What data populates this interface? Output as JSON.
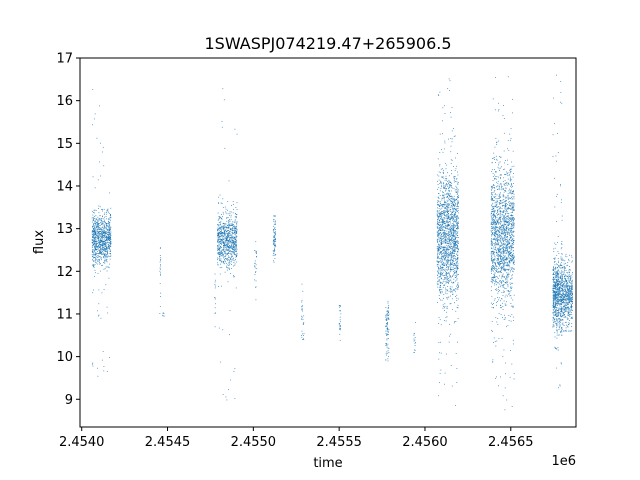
{
  "chart_data": {
    "type": "scatter",
    "title": "1SWASPJ074219.47+265906.5",
    "xlabel": "time",
    "ylabel": "flux",
    "x_offset_label": "1e6",
    "xlim": [
      2453990,
      2456880
    ],
    "ylim": [
      8.35,
      17.0
    ],
    "xticks": [
      2454000,
      2454500,
      2455000,
      2455500,
      2456000,
      2456500
    ],
    "xtick_labels": [
      "2.4540",
      "2.4545",
      "2.4550",
      "2.4555",
      "2.4560",
      "2.4565"
    ],
    "yticks": [
      9,
      10,
      11,
      12,
      13,
      14,
      15,
      16,
      17
    ],
    "ytick_labels": [
      "9",
      "10",
      "11",
      "12",
      "13",
      "14",
      "15",
      "16",
      "17"
    ],
    "grid": false,
    "point_color": "#1f77b4",
    "clusters": [
      {
        "x_start": 2454060,
        "x_end": 2454170,
        "center": 12.75,
        "spread": 0.3,
        "count": 900,
        "outlier_low": 9.5,
        "outlier_high": 16.4
      },
      {
        "x_start": 2454455,
        "x_end": 2454460,
        "center": 12.0,
        "spread": 0.35,
        "count": 20,
        "outlier_low": 11.0,
        "outlier_high": 12.9
      },
      {
        "x_start": 2454470,
        "x_end": 2454480,
        "center": 11.0,
        "spread": 0.05,
        "count": 6,
        "outlier_low": 10.95,
        "outlier_high": 11.05
      },
      {
        "x_start": 2454775,
        "x_end": 2454780,
        "center": 11.4,
        "spread": 0.4,
        "count": 14,
        "outlier_low": 10.7,
        "outlier_high": 12.0
      },
      {
        "x_start": 2454790,
        "x_end": 2454905,
        "center": 12.75,
        "spread": 0.32,
        "count": 800,
        "outlier_low": 8.7,
        "outlier_high": 16.6
      },
      {
        "x_start": 2455005,
        "x_end": 2455020,
        "center": 12.1,
        "spread": 0.5,
        "count": 25,
        "outlier_low": 11.0,
        "outlier_high": 13.2
      },
      {
        "x_start": 2455115,
        "x_end": 2455130,
        "center": 12.8,
        "spread": 0.3,
        "count": 80,
        "outlier_low": 12.2,
        "outlier_high": 13.3
      },
      {
        "x_start": 2455280,
        "x_end": 2455295,
        "center": 11.0,
        "spread": 0.4,
        "count": 30,
        "outlier_low": 10.4,
        "outlier_high": 11.7
      },
      {
        "x_start": 2455500,
        "x_end": 2455510,
        "center": 10.9,
        "spread": 0.3,
        "count": 25,
        "outlier_low": 9.9,
        "outlier_high": 11.2
      },
      {
        "x_start": 2455770,
        "x_end": 2455790,
        "center": 10.7,
        "spread": 0.4,
        "count": 90,
        "outlier_low": 9.9,
        "outlier_high": 11.6
      },
      {
        "x_start": 2455935,
        "x_end": 2455945,
        "center": 10.4,
        "spread": 0.2,
        "count": 15,
        "outlier_low": 10.1,
        "outlier_high": 10.8
      },
      {
        "x_start": 2456070,
        "x_end": 2456195,
        "center": 12.8,
        "spread": 0.75,
        "count": 1600,
        "outlier_low": 8.8,
        "outlier_high": 16.6
      },
      {
        "x_start": 2456385,
        "x_end": 2456520,
        "center": 12.8,
        "spread": 0.75,
        "count": 1600,
        "outlier_low": 8.7,
        "outlier_high": 16.6
      },
      {
        "x_start": 2456745,
        "x_end": 2456800,
        "center": 11.5,
        "spread": 0.45,
        "count": 700,
        "outlier_low": 8.8,
        "outlier_high": 16.6
      },
      {
        "x_start": 2456800,
        "x_end": 2456860,
        "center": 11.45,
        "spread": 0.35,
        "count": 500,
        "outlier_low": 10.6,
        "outlier_high": 12.4
      }
    ]
  }
}
